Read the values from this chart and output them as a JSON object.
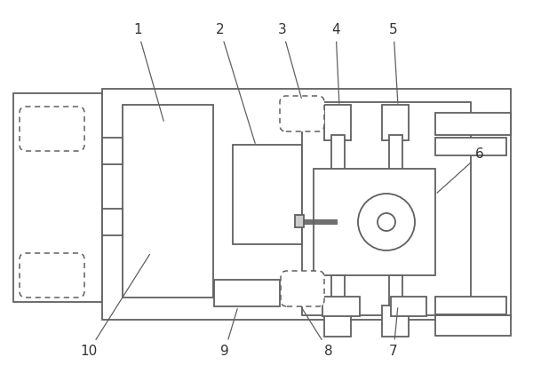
{
  "bg_color": "#ffffff",
  "line_color": "#606060",
  "lw": 1.3,
  "fig_width": 6.0,
  "fig_height": 4.29,
  "dpi": 100,
  "label_fontsize": 11,
  "label_color": "#333333"
}
